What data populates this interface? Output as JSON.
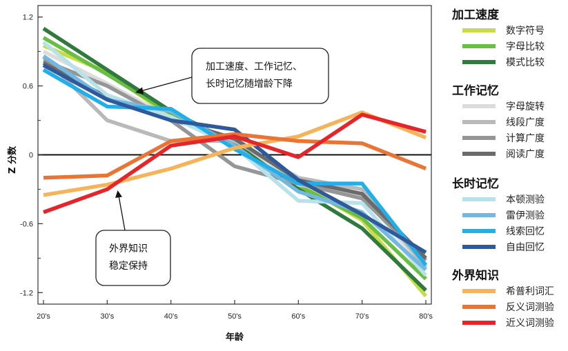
{
  "chart_data": {
    "type": "line",
    "xlabel": "年龄",
    "ylabel": "Z 分数",
    "categories": [
      "20's",
      "30's",
      "40's",
      "50's",
      "60's",
      "70's",
      "80's"
    ],
    "ylim": [
      -1.3,
      1.3
    ],
    "yticks": [
      -1.2,
      -0.6,
      0,
      0.6,
      1.2
    ],
    "ytick_labels": [
      "-1.2",
      "-0.6",
      "0",
      "0.6",
      "1.2"
    ],
    "grid": false,
    "legend_position": "right",
    "groups": [
      {
        "title": "加工速度",
        "series": [
          {
            "name": "数字符号",
            "color": "#c8dc4a",
            "values": [
              0.95,
              0.72,
              0.33,
              0.12,
              -0.25,
              -0.57,
              -1.23
            ]
          },
          {
            "name": "字母比较",
            "color": "#6abd45",
            "values": [
              1.02,
              0.7,
              0.36,
              0.1,
              -0.27,
              -0.55,
              -1.08
            ]
          },
          {
            "name": "模式比较",
            "color": "#2f7a3c",
            "values": [
              1.1,
              0.74,
              0.38,
              0.1,
              -0.3,
              -0.64,
              -1.18
            ]
          }
        ]
      },
      {
        "title": "工作记忆",
        "series": [
          {
            "name": "字母旋转",
            "color": "#dcdcdc",
            "values": [
              0.9,
              0.62,
              0.32,
              0.14,
              -0.26,
              -0.35,
              -1.0
            ]
          },
          {
            "name": "线段广度",
            "color": "#b9b9b9",
            "values": [
              0.85,
              0.3,
              0.12,
              0.12,
              -0.2,
              -0.3,
              -0.98
            ]
          },
          {
            "name": "计算广度",
            "color": "#969696",
            "values": [
              0.82,
              0.6,
              0.3,
              -0.1,
              -0.25,
              -0.38,
              -0.92
            ]
          },
          {
            "name": "阅读广度",
            "color": "#6a6a6a",
            "values": [
              0.8,
              0.5,
              0.31,
              0.14,
              -0.22,
              -0.34,
              -0.9
            ]
          }
        ]
      },
      {
        "title": "长时记忆",
        "series": [
          {
            "name": "本顿测验",
            "color": "#b8e2ea",
            "values": [
              0.98,
              0.52,
              0.33,
              0.07,
              -0.4,
              -0.42,
              -1.05
            ]
          },
          {
            "name": "雷伊测验",
            "color": "#72b8e0",
            "values": [
              0.86,
              0.48,
              0.38,
              0.08,
              -0.32,
              -0.5,
              -1.0
            ]
          },
          {
            "name": "线索回忆",
            "color": "#22aee8",
            "values": [
              0.74,
              0.42,
              0.4,
              0.05,
              -0.25,
              -0.25,
              -0.96
            ]
          },
          {
            "name": "自由回忆",
            "color": "#2e5a9c",
            "values": [
              0.78,
              0.48,
              0.3,
              0.22,
              -0.22,
              -0.52,
              -0.85
            ]
          }
        ]
      },
      {
        "title": "外界知识",
        "series": [
          {
            "name": "希普利词汇",
            "color": "#f5b45a",
            "values": [
              -0.35,
              -0.26,
              -0.12,
              0.06,
              0.16,
              0.37,
              0.15
            ]
          },
          {
            "name": "反义词测验",
            "color": "#ea7434",
            "values": [
              -0.2,
              -0.18,
              0.12,
              0.18,
              0.12,
              0.1,
              -0.12
            ]
          },
          {
            "name": "近义词测验",
            "color": "#e5252a",
            "values": [
              -0.5,
              -0.3,
              0.08,
              0.16,
              -0.02,
              0.35,
              0.2
            ]
          }
        ]
      }
    ],
    "annotations": [
      {
        "lines": [
          "加工速度、工作记忆、",
          "长时记忆随增龄下降"
        ]
      },
      {
        "lines": [
          "外界知识",
          "稳定保持"
        ]
      }
    ]
  }
}
